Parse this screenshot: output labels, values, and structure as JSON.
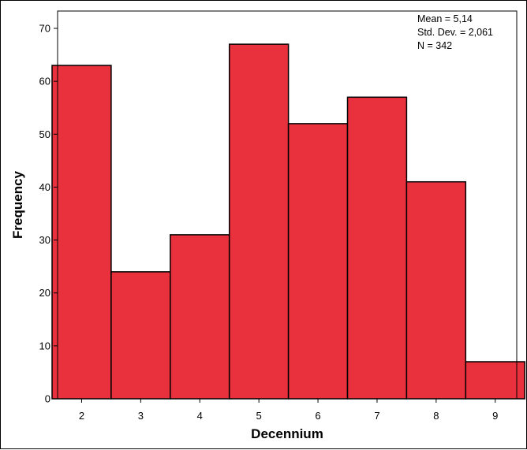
{
  "chart_data": {
    "type": "bar",
    "categories": [
      "2",
      "3",
      "4",
      "5",
      "6",
      "7",
      "8",
      "9"
    ],
    "values": [
      63,
      24,
      31,
      67,
      52,
      57,
      41,
      7
    ],
    "xlabel": "Decennium",
    "ylabel": "Frequency",
    "ylim": [
      0,
      70
    ],
    "yticks": [
      "0",
      "10",
      "20",
      "30",
      "40",
      "50",
      "60",
      "70"
    ],
    "bar_color": "#e8313d",
    "grid": false,
    "stats": {
      "mean": "Mean = 5,14",
      "std_dev": "Std. Dev. = 2,061",
      "n": "N = 342"
    }
  }
}
